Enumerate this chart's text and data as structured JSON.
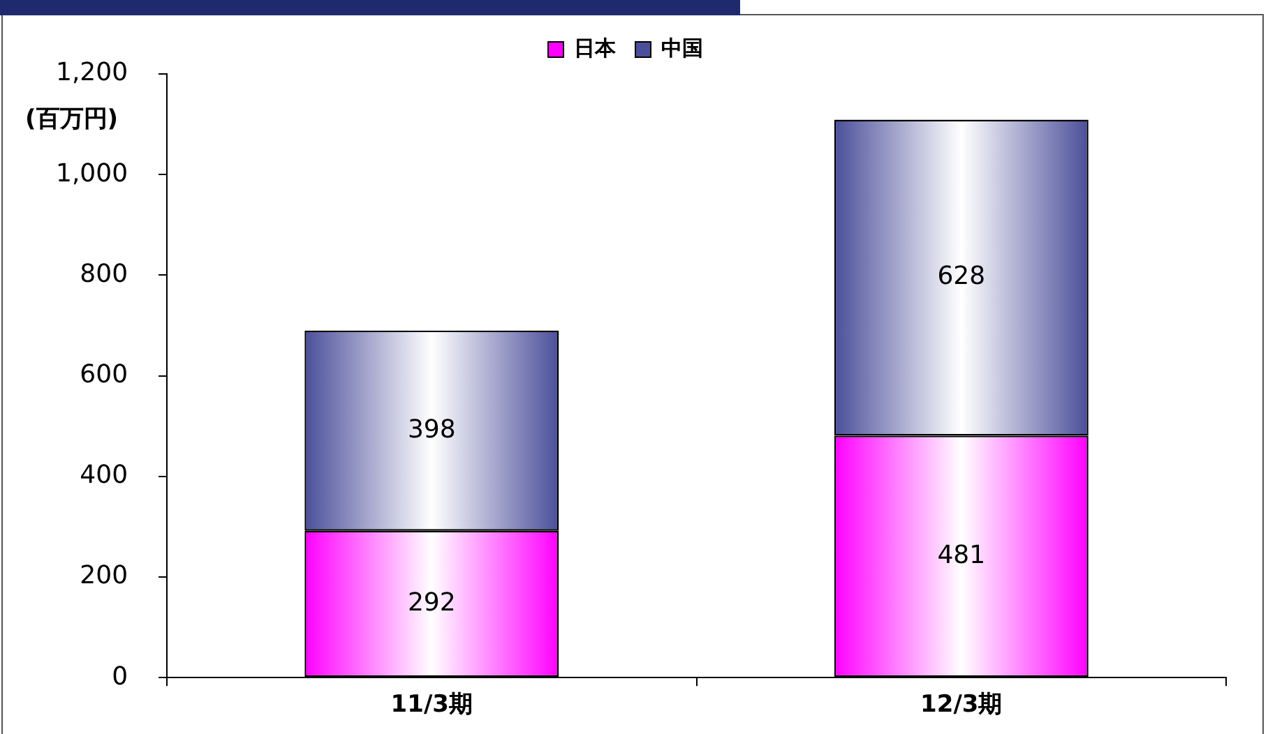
{
  "chart_data": {
    "type": "bar",
    "stacked": true,
    "ylabel": "(百万円)",
    "categories": [
      "11/3期",
      "12/3期"
    ],
    "series": [
      {
        "name": "日本",
        "color": "#ff00ff",
        "values": [
          292,
          481
        ]
      },
      {
        "name": "中国",
        "color": "#4b4f9a",
        "values": [
          398,
          628
        ]
      }
    ],
    "ylim": [
      0,
      1200
    ],
    "yticks": [
      0,
      200,
      400,
      600,
      800,
      {
        "value": 1000,
        "label": "1,000"
      },
      {
        "value": 1200,
        "label": "1,200"
      }
    ],
    "grid": false,
    "legend": "top",
    "data_labels": true
  }
}
